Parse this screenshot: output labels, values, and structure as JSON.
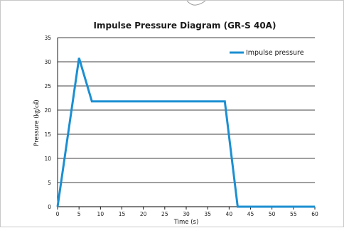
{
  "chart_data": {
    "type": "line",
    "title": "Impulse Pressure Diagram (GR-S 40A)",
    "xlabel": "Time (s)",
    "ylabel": "Pressure (㎏/㎠)",
    "xlim": [
      0,
      60
    ],
    "ylim": [
      0,
      35
    ],
    "x_ticks": [
      0,
      5,
      10,
      15,
      20,
      25,
      30,
      35,
      40,
      45,
      50,
      55,
      60
    ],
    "y_ticks": [
      0,
      5,
      10,
      15,
      20,
      25,
      30,
      35
    ],
    "grid": "horizontal",
    "legend_position": "top-right",
    "series": [
      {
        "name": "Impulse pressure",
        "color": "#1b8fd2",
        "points": [
          [
            0,
            0
          ],
          [
            5,
            30.8
          ],
          [
            8,
            21.8
          ],
          [
            39,
            21.8
          ],
          [
            42,
            0
          ],
          [
            60,
            0
          ]
        ]
      }
    ]
  }
}
